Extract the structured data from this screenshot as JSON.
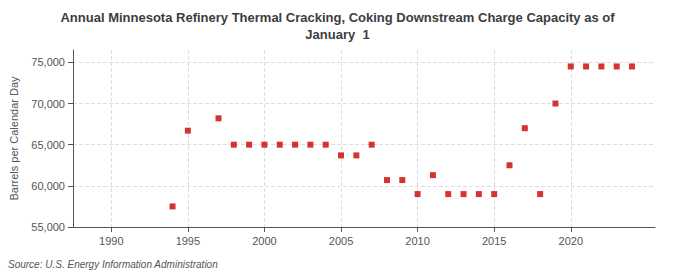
{
  "chart_data": {
    "type": "scatter",
    "title": "Annual Minnesota Refinery Thermal Cracking, Coking Downstream Charge Capacity as of\nJanuary  1",
    "ylabel": "Barrels per Calendar Day",
    "source": "Source: U.S. Energy Information Administration",
    "x": [
      1994,
      1995,
      1997,
      1998,
      1999,
      2000,
      2001,
      2002,
      2003,
      2004,
      2005,
      2006,
      2007,
      2008,
      2009,
      2010,
      2011,
      2012,
      2013,
      2014,
      2015,
      2016,
      2017,
      2018,
      2019,
      2020,
      2021,
      2022,
      2023,
      2024
    ],
    "values": [
      57500,
      66700,
      68200,
      65000,
      65000,
      65000,
      65000,
      65000,
      65000,
      65000,
      63700,
      63700,
      65000,
      60700,
      60700,
      59000,
      61300,
      59000,
      59000,
      59000,
      59000,
      62500,
      67000,
      59000,
      70000,
      74500,
      74500,
      74500,
      74500,
      74500
    ],
    "color": "#cc0000",
    "marker": "square",
    "xlim": [
      1987.5,
      2025.5
    ],
    "xticks": [
      1990,
      1995,
      2000,
      2005,
      2010,
      2015,
      2020
    ],
    "ylim": [
      55000,
      76500
    ],
    "yticks": [
      {
        "value": 55000,
        "label": "55,000"
      },
      {
        "value": 60000,
        "label": "60,000"
      },
      {
        "value": 65000,
        "label": "65,000"
      },
      {
        "value": 70000,
        "label": "70,000"
      },
      {
        "value": 75000,
        "label": "75,000"
      }
    ],
    "grid": true
  }
}
